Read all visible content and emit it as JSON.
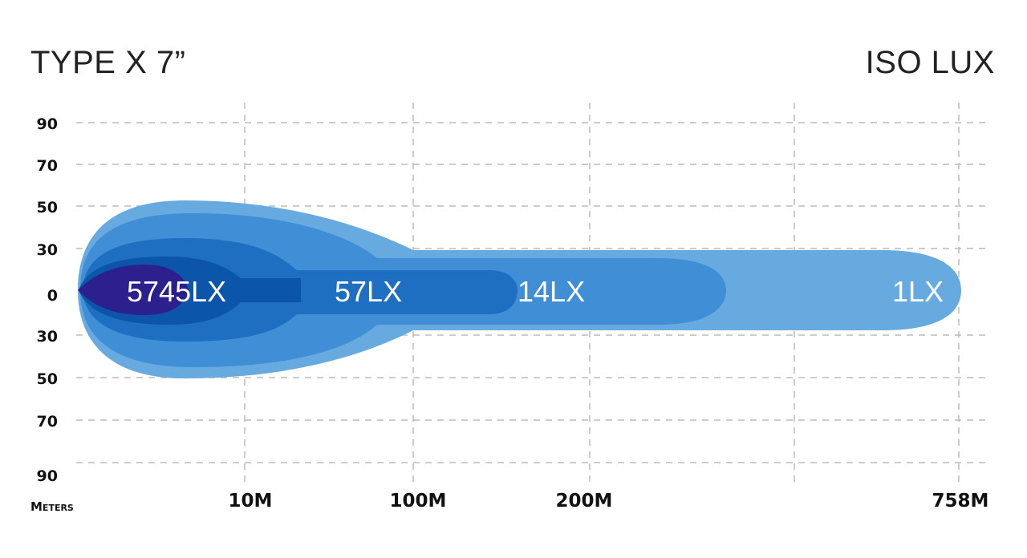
{
  "chart_data": {
    "type": "isolux",
    "title": "TYPE X 7”",
    "subtitle": "ISO LUX",
    "xlabel": "Meters",
    "x_ticks": [
      "10M",
      "100M",
      "200M",
      "758M"
    ],
    "y_ticks": [
      "90",
      "70",
      "50",
      "30",
      "0",
      "30",
      "50",
      "70",
      "90"
    ],
    "grid": true,
    "contours": [
      {
        "label": "1LX",
        "color": "#67aadf"
      },
      {
        "label": "14LX",
        "color": "#3f8ed6"
      },
      {
        "label": "57LX",
        "color": "#1e6fc2"
      },
      {
        "label": "",
        "color": "#0b56aa"
      },
      {
        "label": "5745LX",
        "color": "#2c1f8e"
      }
    ]
  }
}
